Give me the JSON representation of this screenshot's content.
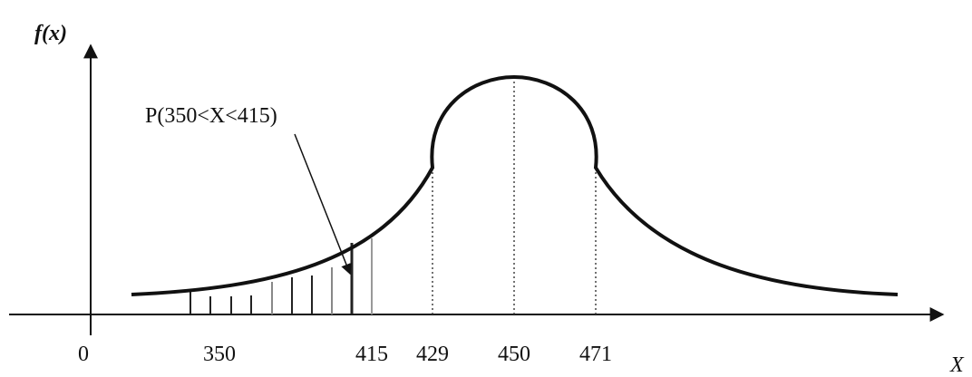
{
  "axes": {
    "y_label": "f(x)",
    "x_label": "X",
    "origin": "0"
  },
  "annotation": "P(350<X<415)",
  "ticks": [
    "350",
    "415",
    "429",
    "450",
    "471"
  ]
}
